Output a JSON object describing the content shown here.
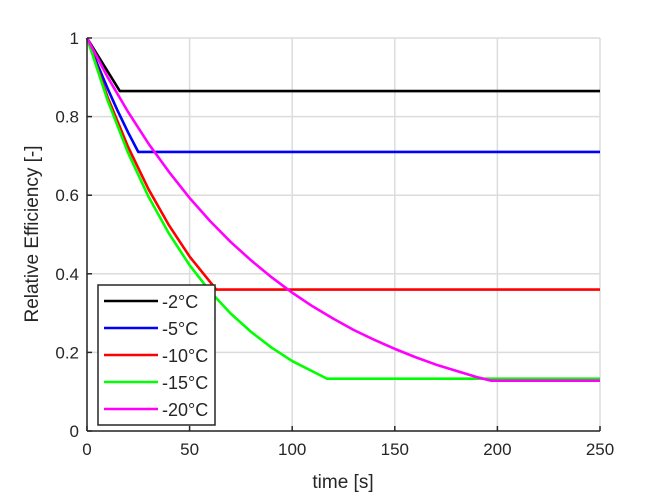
{
  "chart_data": {
    "type": "line",
    "title": "",
    "xlabel": "time [s]",
    "ylabel": "Relative Efficiency [-]",
    "xlim": [
      0,
      250
    ],
    "ylim": [
      0,
      1
    ],
    "xticks": [
      0,
      50,
      100,
      150,
      200,
      250
    ],
    "xtick_labels": [
      "0",
      "50",
      "100",
      "150",
      "200",
      "250"
    ],
    "yticks": [
      0,
      0.2,
      0.4,
      0.6,
      0.8,
      1
    ],
    "ytick_labels": [
      "0",
      "0.2",
      "0.4",
      "0.6",
      "0.8",
      "1"
    ],
    "grid": true,
    "legend_position": "bottom-left",
    "series": [
      {
        "name": "-2°C",
        "color": "#000000",
        "points": [
          [
            0,
            1
          ],
          [
            16,
            0.865
          ],
          [
            250,
            0.865
          ]
        ]
      },
      {
        "name": "-5°C",
        "color": "#0000ff",
        "points": [
          [
            0,
            1
          ],
          [
            5,
            0.934
          ],
          [
            10,
            0.872
          ],
          [
            15,
            0.814
          ],
          [
            20,
            0.76
          ],
          [
            25,
            0.71
          ],
          [
            250,
            0.71
          ]
        ]
      },
      {
        "name": "-10°C",
        "color": "#ff0000",
        "points": [
          [
            0,
            1
          ],
          [
            10,
            0.85
          ],
          [
            20,
            0.723
          ],
          [
            30,
            0.615
          ],
          [
            40,
            0.523
          ],
          [
            50,
            0.444
          ],
          [
            63,
            0.36
          ],
          [
            250,
            0.36
          ]
        ]
      },
      {
        "name": "-15°C",
        "color": "#00ff00",
        "points": [
          [
            0,
            1
          ],
          [
            10,
            0.842
          ],
          [
            20,
            0.708
          ],
          [
            30,
            0.596
          ],
          [
            40,
            0.502
          ],
          [
            50,
            0.422
          ],
          [
            60,
            0.355
          ],
          [
            70,
            0.299
          ],
          [
            80,
            0.252
          ],
          [
            90,
            0.212
          ],
          [
            100,
            0.178
          ],
          [
            117,
            0.133
          ],
          [
            250,
            0.133
          ]
        ]
      },
      {
        "name": "-20°C",
        "color": "#ff00ff",
        "points": [
          [
            0,
            1
          ],
          [
            10,
            0.901
          ],
          [
            20,
            0.812
          ],
          [
            30,
            0.731
          ],
          [
            40,
            0.659
          ],
          [
            50,
            0.593
          ],
          [
            60,
            0.534
          ],
          [
            70,
            0.481
          ],
          [
            80,
            0.434
          ],
          [
            90,
            0.391
          ],
          [
            100,
            0.352
          ],
          [
            110,
            0.317
          ],
          [
            120,
            0.286
          ],
          [
            130,
            0.257
          ],
          [
            140,
            0.232
          ],
          [
            150,
            0.209
          ],
          [
            160,
            0.188
          ],
          [
            170,
            0.169
          ],
          [
            180,
            0.153
          ],
          [
            190,
            0.137
          ],
          [
            197,
            0.128
          ],
          [
            250,
            0.128
          ]
        ]
      }
    ]
  }
}
